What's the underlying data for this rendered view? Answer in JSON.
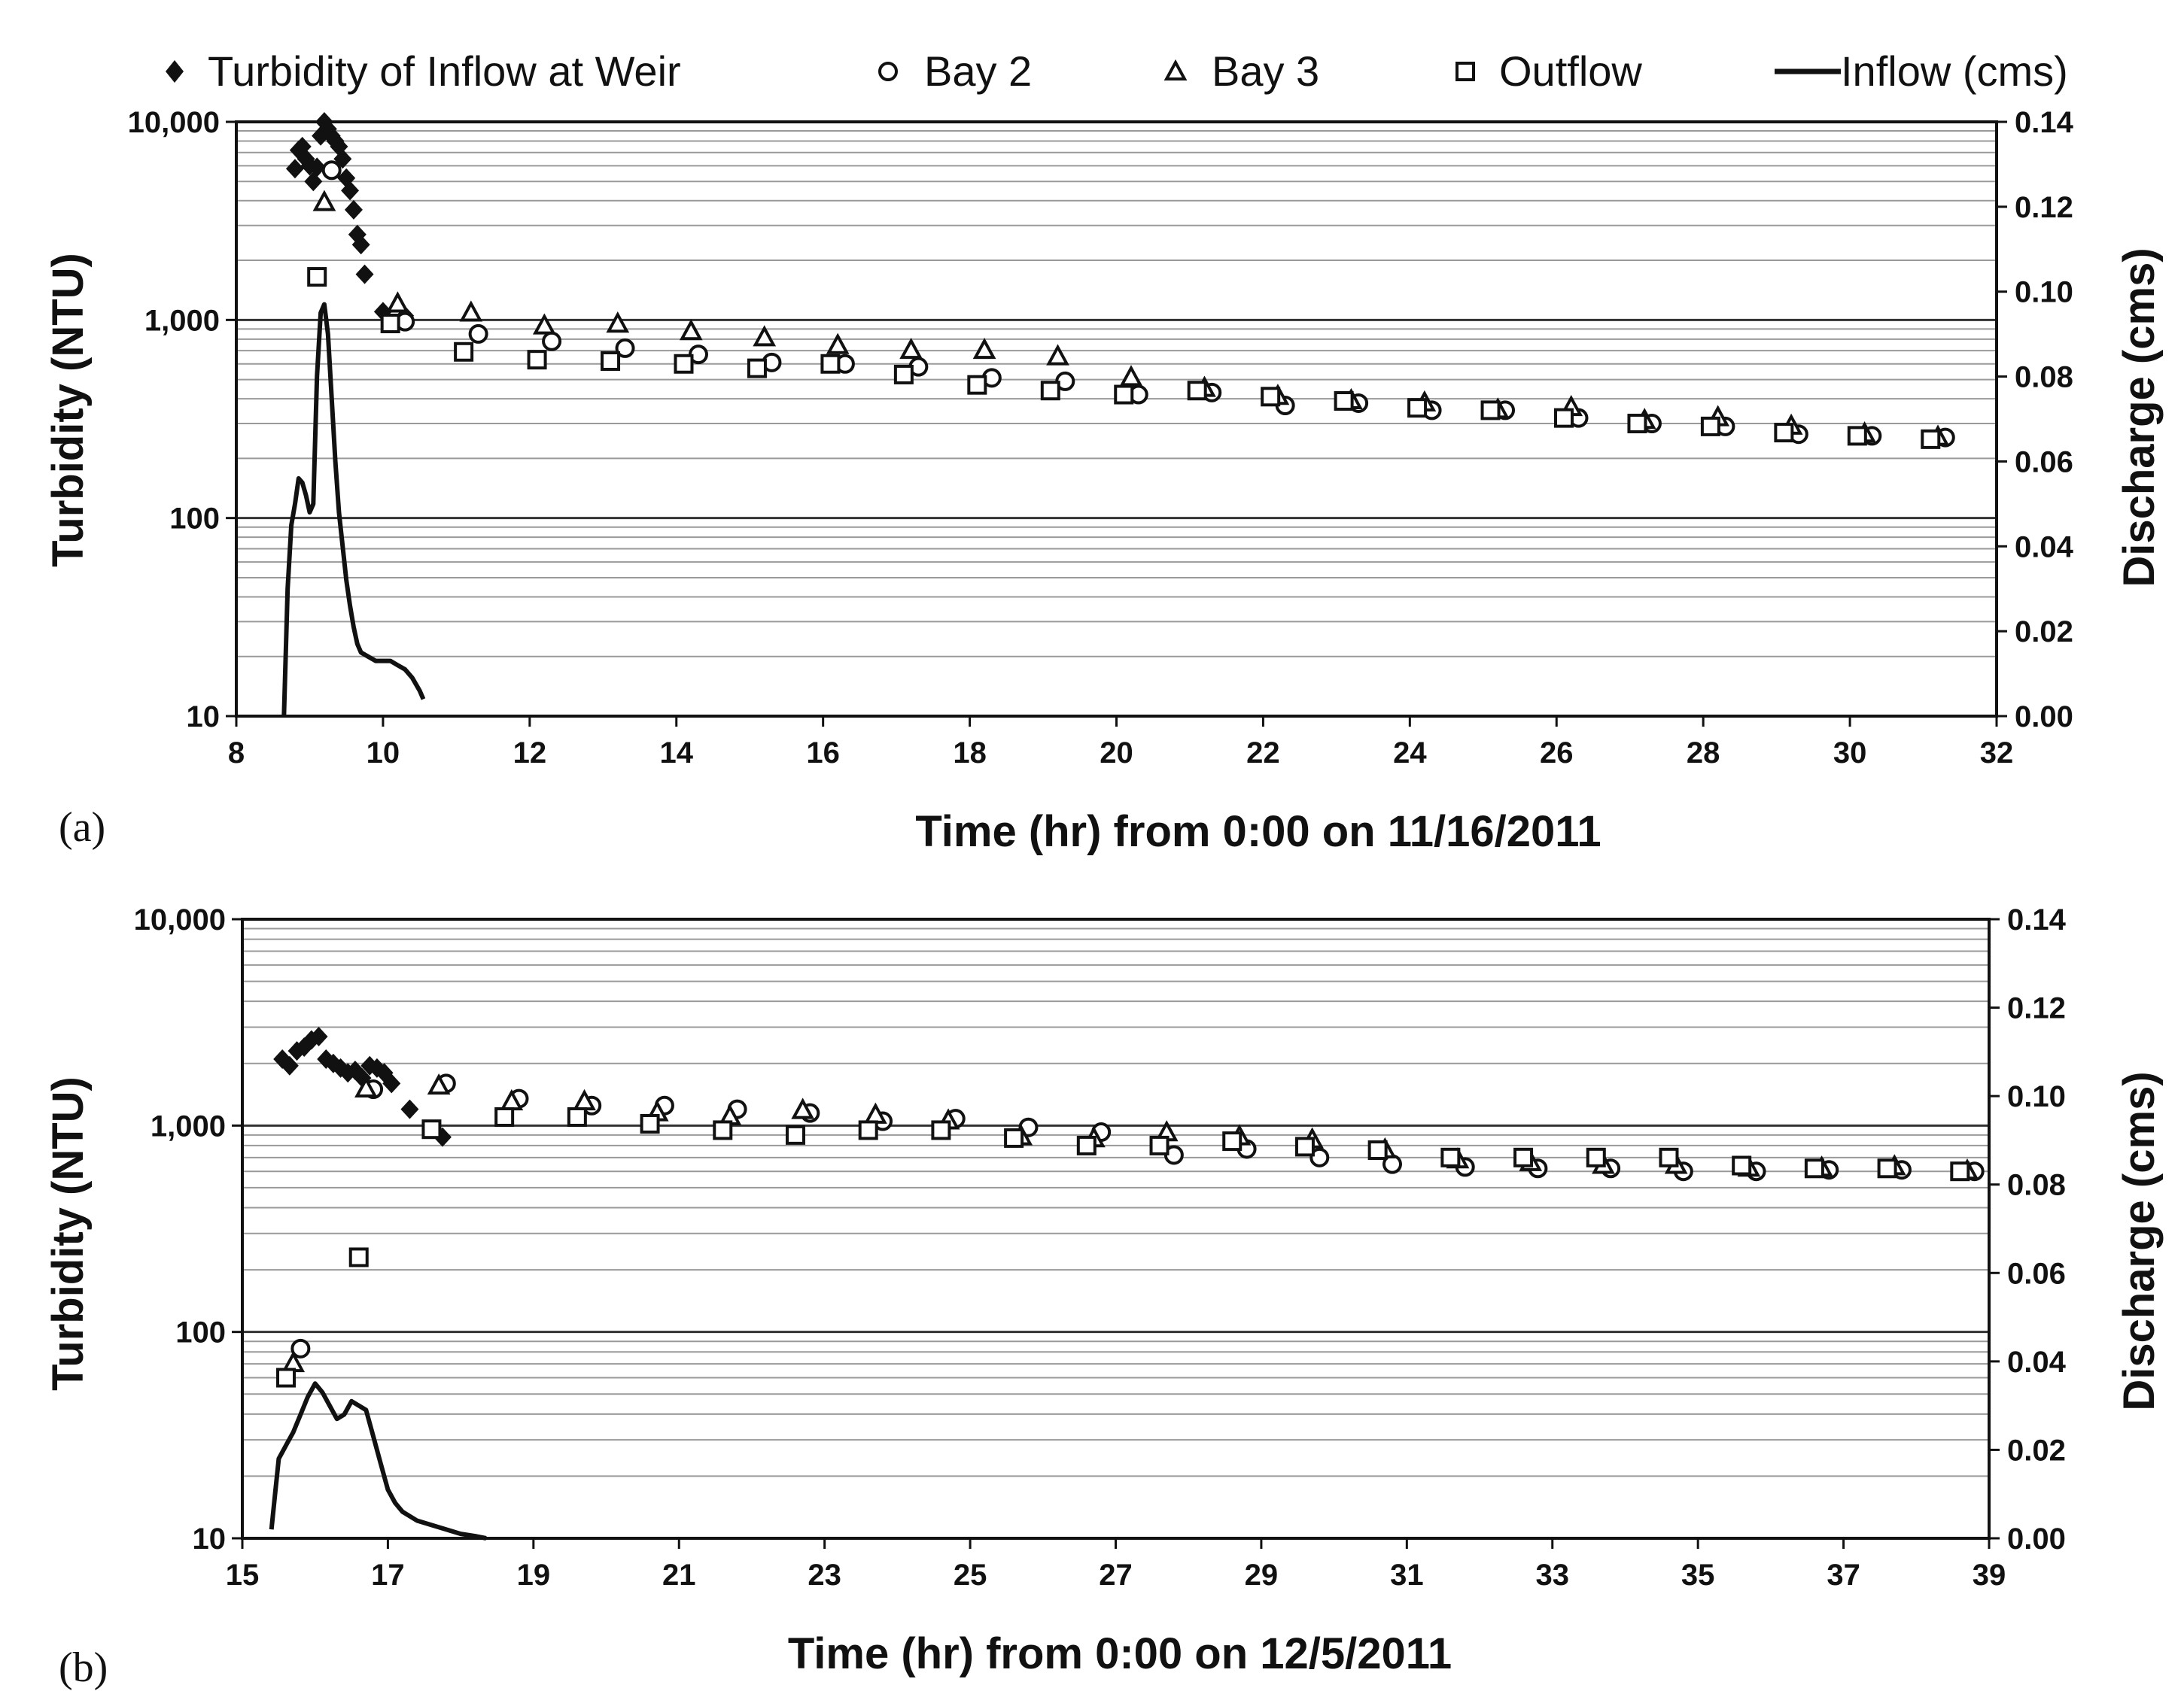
{
  "legend": [
    {
      "marker": "diamond",
      "label": "Turbidity of Inflow at Weir"
    },
    {
      "marker": "circle",
      "label": "Bay 2"
    },
    {
      "marker": "triangle",
      "label": "Bay 3"
    },
    {
      "marker": "square",
      "label": "Outflow"
    },
    {
      "marker": "line",
      "label": "Inflow (cms)"
    }
  ],
  "colors": {
    "ink": "#111111",
    "major_grid": "#333333",
    "minor_grid": "#9a9a9a",
    "background": "#ffffff"
  },
  "chart_data": [
    {
      "type": "scatter",
      "panel_label": "(a)",
      "xlabel": "Time (hr) from 0:00 on 11/16/2011",
      "ylabel": "Turbidity (NTU)",
      "y2label": "Discharge (cms)",
      "xlim": [
        8,
        32
      ],
      "xticks": [
        "8",
        "10",
        "12",
        "14",
        "16",
        "18",
        "20",
        "22",
        "24",
        "26",
        "28",
        "30",
        "32"
      ],
      "ylim": [
        10,
        10000
      ],
      "yscale": "log",
      "yticks": [
        "10",
        "100",
        "1,000",
        "10,000"
      ],
      "y2lim": [
        0,
        0.14
      ],
      "y2ticks": [
        "0.00",
        "0.02",
        "0.04",
        "0.06",
        "0.08",
        "0.10",
        "0.12",
        "0.14"
      ],
      "grid": "horizontal",
      "series": [
        {
          "name": "Turbidity of Inflow at Weir",
          "marker": "diamond",
          "axis": "left",
          "x": [
            8.8,
            8.85,
            8.9,
            8.95,
            9.0,
            9.05,
            9.1,
            9.15,
            9.2,
            9.25,
            9.3,
            9.35,
            9.4,
            9.45,
            9.5,
            9.55,
            9.6,
            9.65,
            9.7,
            9.75,
            10.0,
            10.3
          ],
          "y": [
            5800,
            7200,
            7500,
            6500,
            6000,
            5000,
            5900,
            8500,
            10000,
            9200,
            8500,
            8000,
            7500,
            6500,
            5200,
            4500,
            3600,
            2700,
            2400,
            1700,
            1100,
            1050
          ]
        },
        {
          "name": "Bay 2",
          "marker": "circle",
          "axis": "left",
          "x": [
            9.3,
            10.3,
            11.3,
            12.3,
            13.3,
            14.3,
            15.3,
            16.3,
            17.3,
            18.3,
            19.3,
            20.3,
            21.3,
            22.3,
            23.3,
            24.3,
            25.3,
            26.3,
            27.3,
            28.3,
            29.3,
            30.3,
            31.3
          ],
          "y": [
            5700,
            980,
            850,
            780,
            720,
            670,
            610,
            600,
            580,
            510,
            490,
            420,
            430,
            370,
            380,
            350,
            350,
            320,
            300,
            290,
            265,
            260,
            255
          ]
        },
        {
          "name": "Bay 3",
          "marker": "triangle",
          "axis": "left",
          "x": [
            9.2,
            10.2,
            11.2,
            12.2,
            13.2,
            14.2,
            15.2,
            16.2,
            17.2,
            18.2,
            19.2,
            20.2,
            21.2,
            22.2,
            23.2,
            24.2,
            25.2,
            26.2,
            27.2,
            28.2,
            29.2,
            30.2,
            31.2
          ],
          "y": [
            3900,
            1200,
            1080,
            930,
            950,
            870,
            810,
            740,
            700,
            700,
            650,
            510,
            450,
            410,
            390,
            380,
            350,
            360,
            310,
            320,
            290,
            265,
            255
          ]
        },
        {
          "name": "Outflow",
          "marker": "square",
          "axis": "left",
          "x": [
            9.1,
            10.1,
            11.1,
            12.1,
            13.1,
            14.1,
            15.1,
            16.1,
            17.1,
            18.1,
            19.1,
            20.1,
            21.1,
            22.1,
            23.1,
            24.1,
            25.1,
            26.1,
            27.1,
            28.1,
            29.1,
            30.1,
            31.1
          ],
          "y": [
            1650,
            960,
            690,
            630,
            620,
            600,
            570,
            600,
            530,
            470,
            440,
            420,
            440,
            410,
            390,
            360,
            350,
            320,
            300,
            290,
            270,
            260,
            250
          ]
        },
        {
          "name": "Inflow (cms)",
          "marker": "line",
          "axis": "right",
          "x": [
            8.65,
            8.7,
            8.75,
            8.8,
            8.85,
            8.9,
            8.95,
            9.0,
            9.05,
            9.1,
            9.15,
            9.2,
            9.25,
            9.3,
            9.35,
            9.4,
            9.45,
            9.5,
            9.55,
            9.6,
            9.65,
            9.7,
            9.8,
            9.9,
            10.0,
            10.1,
            10.2,
            10.3,
            10.4,
            10.5,
            10.55
          ],
          "y": [
            0.0,
            0.03,
            0.045,
            0.05,
            0.056,
            0.055,
            0.052,
            0.048,
            0.05,
            0.08,
            0.095,
            0.097,
            0.09,
            0.075,
            0.06,
            0.048,
            0.04,
            0.032,
            0.026,
            0.021,
            0.017,
            0.015,
            0.014,
            0.013,
            0.013,
            0.013,
            0.012,
            0.011,
            0.009,
            0.006,
            0.004
          ]
        }
      ]
    },
    {
      "type": "scatter",
      "panel_label": "(b)",
      "xlabel": "Time (hr) from 0:00 on 12/5/2011",
      "ylabel": "Turbidity (NTU)",
      "y2label": "Discharge (cms)",
      "xlim": [
        15,
        39
      ],
      "xticks": [
        "15",
        "17",
        "19",
        "21",
        "23",
        "25",
        "27",
        "29",
        "31",
        "33",
        "35",
        "37",
        "39"
      ],
      "ylim": [
        10,
        10000
      ],
      "yscale": "log",
      "yticks": [
        "10",
        "100",
        "1,000",
        "10,000"
      ],
      "y2lim": [
        0,
        0.14
      ],
      "y2ticks": [
        "0.00",
        "0.02",
        "0.04",
        "0.06",
        "0.08",
        "0.10",
        "0.12",
        "0.14"
      ],
      "grid": "horizontal",
      "series": [
        {
          "name": "Turbidity of Inflow at Weir",
          "marker": "diamond",
          "axis": "left",
          "x": [
            15.55,
            15.65,
            15.75,
            15.85,
            15.95,
            16.05,
            16.15,
            16.25,
            16.35,
            16.45,
            16.55,
            16.65,
            16.75,
            16.85,
            16.95,
            17.05,
            17.3,
            17.75
          ],
          "y": [
            2100,
            1950,
            2300,
            2400,
            2600,
            2700,
            2100,
            2000,
            1900,
            1800,
            1850,
            1700,
            1950,
            1900,
            1800,
            1600,
            1200,
            880
          ]
        },
        {
          "name": "Bay 2",
          "marker": "circle",
          "axis": "left",
          "x": [
            15.8,
            16.8,
            17.8,
            18.8,
            19.8,
            20.8,
            21.8,
            22.8,
            23.8,
            24.8,
            25.8,
            26.8,
            27.8,
            28.8,
            29.8,
            30.8,
            31.8,
            32.8,
            33.8,
            34.8,
            35.8,
            36.8,
            37.8,
            38.8
          ],
          "y": [
            83,
            1500,
            1600,
            1350,
            1250,
            1250,
            1200,
            1150,
            1050,
            1080,
            980,
            930,
            720,
            770,
            700,
            650,
            630,
            620,
            620,
            600,
            600,
            610,
            610,
            600
          ]
        },
        {
          "name": "Bay 3",
          "marker": "triangle",
          "axis": "left",
          "x": [
            15.7,
            16.7,
            17.7,
            18.7,
            19.7,
            20.7,
            21.7,
            22.7,
            23.7,
            24.7,
            25.7,
            26.7,
            27.7,
            28.7,
            29.7,
            30.7,
            31.7,
            32.7,
            33.7,
            34.7,
            35.7,
            36.7,
            37.7,
            38.7
          ],
          "y": [
            70,
            1500,
            1550,
            1300,
            1300,
            1150,
            1100,
            1180,
            1120,
            1050,
            880,
            860,
            920,
            880,
            850,
            760,
            680,
            660,
            640,
            640,
            620,
            620,
            630,
            600
          ]
        },
        {
          "name": "Outflow",
          "marker": "square",
          "axis": "left",
          "x": [
            15.6,
            16.6,
            17.6,
            18.6,
            19.6,
            20.6,
            21.6,
            22.6,
            23.6,
            24.6,
            25.6,
            26.6,
            27.6,
            28.6,
            29.6,
            30.6,
            31.6,
            32.6,
            33.6,
            34.6,
            35.6,
            36.6,
            37.6,
            38.6
          ],
          "y": [
            60,
            230,
            960,
            1100,
            1100,
            1020,
            950,
            900,
            950,
            950,
            870,
            800,
            800,
            840,
            790,
            760,
            700,
            700,
            700,
            700,
            640,
            620,
            620,
            600
          ]
        },
        {
          "name": "Inflow (cms)",
          "marker": "line",
          "axis": "right",
          "x": [
            15.4,
            15.45,
            15.5,
            15.6,
            15.7,
            15.8,
            15.9,
            16.0,
            16.05,
            16.1,
            16.2,
            16.3,
            16.4,
            16.5,
            16.6,
            16.7,
            16.8,
            16.9,
            17.0,
            17.1,
            17.2,
            17.4,
            17.6,
            17.8,
            18.0,
            18.2,
            18.35
          ],
          "y": [
            0.002,
            0.01,
            0.018,
            0.021,
            0.024,
            0.028,
            0.032,
            0.035,
            0.034,
            0.033,
            0.03,
            0.027,
            0.028,
            0.031,
            0.03,
            0.029,
            0.023,
            0.017,
            0.011,
            0.008,
            0.006,
            0.004,
            0.003,
            0.002,
            0.001,
            0.0005,
            0.0
          ]
        }
      ]
    }
  ]
}
